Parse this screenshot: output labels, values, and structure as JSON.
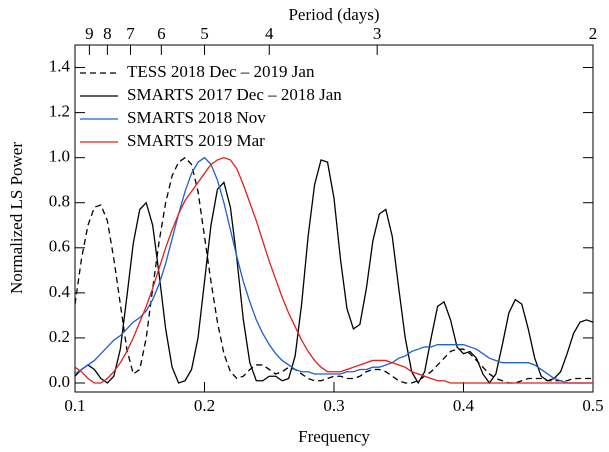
{
  "chart_data": {
    "type": "line",
    "xlabel": "Frequency",
    "ylabel": "Normalized LS Power",
    "top_axis": {
      "label": "Period (days)",
      "ticks": [
        9,
        8,
        7,
        6,
        5,
        4,
        3,
        2
      ]
    },
    "xlim": [
      0.1,
      0.5
    ],
    "xticks": [
      0.1,
      0.2,
      0.3,
      0.4,
      0.5
    ],
    "ylim": [
      -0.04,
      1.5
    ],
    "yticks": [
      {
        "value": 0,
        "label": "0.0"
      },
      0.2,
      0.4,
      0.6,
      0.8,
      {
        "value": 1,
        "label": "1.0"
      },
      1.2,
      1.4
    ],
    "legend": "upper left",
    "x": [
      0.1,
      0.105,
      0.11,
      0.115,
      0.12,
      0.125,
      0.13,
      0.135,
      0.14,
      0.145,
      0.15,
      0.155,
      0.16,
      0.165,
      0.17,
      0.175,
      0.18,
      0.185,
      0.19,
      0.195,
      0.2,
      0.205,
      0.21,
      0.215,
      0.22,
      0.225,
      0.23,
      0.235,
      0.24,
      0.245,
      0.25,
      0.255,
      0.26,
      0.265,
      0.27,
      0.275,
      0.28,
      0.285,
      0.29,
      0.295,
      0.3,
      0.305,
      0.31,
      0.315,
      0.32,
      0.325,
      0.33,
      0.335,
      0.34,
      0.345,
      0.35,
      0.355,
      0.36,
      0.365,
      0.37,
      0.375,
      0.38,
      0.385,
      0.39,
      0.395,
      0.4,
      0.405,
      0.41,
      0.415,
      0.42,
      0.425,
      0.43,
      0.435,
      0.44,
      0.445,
      0.45,
      0.455,
      0.46,
      0.465,
      0.47,
      0.475,
      0.48,
      0.485,
      0.49,
      0.495,
      0.5
    ],
    "series": [
      {
        "name": "TESS 2018 Dec – 2019 Jan",
        "color": "#000000",
        "dashed": true,
        "values": [
          0.35,
          0.55,
          0.7,
          0.78,
          0.79,
          0.72,
          0.55,
          0.35,
          0.15,
          0.04,
          0.06,
          0.2,
          0.42,
          0.63,
          0.8,
          0.92,
          0.98,
          1.0,
          0.97,
          0.85,
          0.65,
          0.45,
          0.27,
          0.13,
          0.05,
          0.02,
          0.03,
          0.06,
          0.08,
          0.08,
          0.06,
          0.04,
          0.05,
          0.07,
          0.06,
          0.04,
          0.02,
          0.01,
          0.01,
          0.02,
          0.03,
          0.03,
          0.02,
          0.02,
          0.03,
          0.05,
          0.06,
          0.06,
          0.05,
          0.03,
          0.01,
          0,
          0,
          0.01,
          0.03,
          0.05,
          0.08,
          0.11,
          0.14,
          0.15,
          0.15,
          0.13,
          0.1,
          0.07,
          0.04,
          0.02,
          0.01,
          0,
          0,
          0.01,
          0.02,
          0.02,
          0.02,
          0.01,
          0.01,
          0.01,
          0.01,
          0.02,
          0.02,
          0.02,
          0.02
        ]
      },
      {
        "name": "SMARTS 2017 Dec – 2018 Jan",
        "color": "#000000",
        "dashed": false,
        "values": [
          0.03,
          0.06,
          0.08,
          0.06,
          0.02,
          0,
          0.03,
          0.15,
          0.38,
          0.62,
          0.77,
          0.8,
          0.7,
          0.48,
          0.24,
          0.07,
          0,
          0.01,
          0.06,
          0.2,
          0.45,
          0.7,
          0.86,
          0.89,
          0.78,
          0.55,
          0.28,
          0.09,
          0.01,
          0.01,
          0.03,
          0.03,
          0.01,
          0.02,
          0.12,
          0.35,
          0.65,
          0.88,
          0.99,
          0.98,
          0.82,
          0.55,
          0.33,
          0.24,
          0.26,
          0.42,
          0.63,
          0.75,
          0.77,
          0.65,
          0.42,
          0.2,
          0.05,
          0,
          0.05,
          0.2,
          0.34,
          0.36,
          0.28,
          0.16,
          0.13,
          0.14,
          0.11,
          0.04,
          0,
          0.04,
          0.17,
          0.31,
          0.37,
          0.35,
          0.24,
          0.11,
          0.03,
          0.01,
          0.02,
          0.05,
          0.13,
          0.22,
          0.27,
          0.28,
          0.27
        ]
      },
      {
        "name": "SMARTS 2018 Nov",
        "color": "#1f5fd0",
        "dashed": false,
        "values": [
          0.04,
          0.06,
          0.08,
          0.1,
          0.13,
          0.16,
          0.19,
          0.21,
          0.24,
          0.27,
          0.29,
          0.32,
          0.37,
          0.44,
          0.53,
          0.64,
          0.75,
          0.85,
          0.93,
          0.98,
          1.0,
          0.97,
          0.9,
          0.8,
          0.68,
          0.56,
          0.45,
          0.36,
          0.28,
          0.22,
          0.17,
          0.13,
          0.1,
          0.08,
          0.06,
          0.05,
          0.05,
          0.04,
          0.04,
          0.04,
          0.04,
          0.04,
          0.05,
          0.05,
          0.06,
          0.06,
          0.07,
          0.07,
          0.08,
          0.09,
          0.11,
          0.12,
          0.14,
          0.15,
          0.16,
          0.16,
          0.17,
          0.17,
          0.17,
          0.17,
          0.17,
          0.16,
          0.15,
          0.13,
          0.11,
          0.1,
          0.09,
          0.09,
          0.09,
          0.09,
          0.09,
          0.08,
          0.06,
          0.04,
          0.02,
          0.01,
          0,
          0,
          0,
          0,
          0
        ]
      },
      {
        "name": "SMARTS 2019 Mar",
        "color": "#e0201e",
        "dashed": false,
        "values": [
          0.07,
          0.05,
          0.02,
          0,
          0,
          0.02,
          0.05,
          0.09,
          0.14,
          0.2,
          0.27,
          0.34,
          0.42,
          0.51,
          0.6,
          0.68,
          0.75,
          0.81,
          0.85,
          0.89,
          0.93,
          0.97,
          0.99,
          1.0,
          0.99,
          0.95,
          0.88,
          0.8,
          0.72,
          0.63,
          0.54,
          0.46,
          0.38,
          0.31,
          0.25,
          0.19,
          0.14,
          0.1,
          0.07,
          0.05,
          0.05,
          0.05,
          0.06,
          0.07,
          0.08,
          0.09,
          0.1,
          0.1,
          0.1,
          0.09,
          0.08,
          0.07,
          0.05,
          0.04,
          0.03,
          0.02,
          0.01,
          0.01,
          0,
          0,
          0,
          0,
          0,
          0,
          0,
          0,
          0,
          0,
          0,
          0,
          0,
          0,
          0,
          0,
          0,
          0,
          0,
          0,
          0,
          0,
          0
        ]
      }
    ]
  }
}
